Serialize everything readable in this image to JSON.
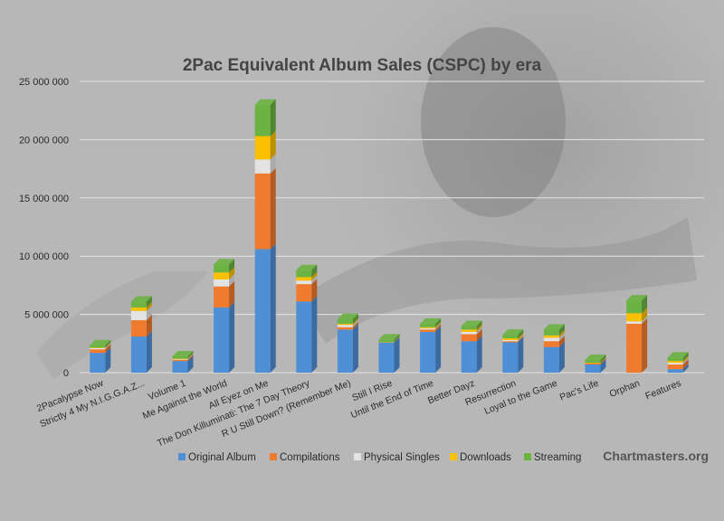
{
  "watermark": "Chartmasters.org",
  "colors": {
    "background": "#b7b7b7",
    "grid": "#e6e6e6"
  },
  "chart_data": {
    "type": "bar",
    "stacked": true,
    "title": "2Pac Equivalent Album Sales (CSPC) by era",
    "xlabel": "",
    "ylabel": "",
    "ylim": [
      0,
      25000000
    ],
    "yticks": [
      0,
      5000000,
      10000000,
      15000000,
      20000000,
      25000000
    ],
    "ytick_labels": [
      "0",
      "5 000 000",
      "10 000 000",
      "15 000 000",
      "20 000 000",
      "25 000 000"
    ],
    "grid": true,
    "legend_position": "bottom",
    "categories": [
      "2Pacalypse Now",
      "Strictly 4 My N.I.G.G.A.Z...",
      "Volume 1",
      "Me Against the World",
      "All Eyez on Me",
      "The Don Killuminati: The 7 Day Theory",
      "R U Still Down? (Remember Me)",
      "Still I Rise",
      "Until the End of Time",
      "Better Dayz",
      "Resurrection",
      "Loyal to the Game",
      "Pac's Life",
      "Orphan",
      "Features"
    ],
    "series": [
      {
        "name": "Original Album",
        "color": "#4f8fd6",
        "values": [
          1700000,
          3100000,
          1000000,
          5600000,
          10600000,
          6100000,
          3700000,
          2600000,
          3500000,
          2700000,
          2600000,
          2200000,
          700000,
          0,
          300000
        ]
      },
      {
        "name": "Compilations",
        "color": "#f07a2d",
        "values": [
          300000,
          1400000,
          100000,
          1800000,
          6500000,
          1500000,
          200000,
          0,
          200000,
          600000,
          100000,
          500000,
          100000,
          4200000,
          400000
        ]
      },
      {
        "name": "Physical Singles",
        "color": "#e3e3e3",
        "values": [
          100000,
          800000,
          50000,
          600000,
          1200000,
          300000,
          200000,
          0,
          100000,
          200000,
          100000,
          300000,
          0,
          200000,
          150000
        ]
      },
      {
        "name": "Downloads",
        "color": "#fbc000",
        "values": [
          50000,
          300000,
          50000,
          600000,
          2000000,
          300000,
          100000,
          50000,
          100000,
          200000,
          150000,
          200000,
          50000,
          700000,
          150000
        ]
      },
      {
        "name": "Streaming",
        "color": "#6bb343",
        "values": [
          200000,
          500000,
          200000,
          700000,
          2700000,
          600000,
          400000,
          200000,
          300000,
          300000,
          300000,
          500000,
          250000,
          1100000,
          300000
        ]
      }
    ]
  }
}
